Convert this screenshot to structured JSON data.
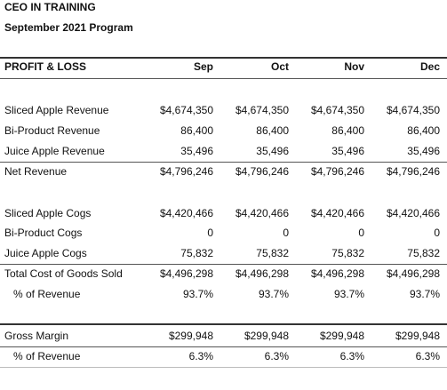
{
  "header": {
    "title": "CEO IN TRAINING",
    "subtitle": "September 2021 Program"
  },
  "table": {
    "columns": [
      "PROFIT & LOSS",
      "Sep",
      "Oct",
      "Nov",
      "Dec"
    ],
    "rows": [
      [
        "Sliced Apple Revenue",
        "$4,674,350",
        "$4,674,350",
        "$4,674,350",
        "$4,674,350"
      ],
      [
        "Bi-Product Revenue",
        "86,400",
        "86,400",
        "86,400",
        "86,400"
      ],
      [
        "Juice Apple Revenue",
        "35,496",
        "35,496",
        "35,496",
        "35,496"
      ],
      [
        "Net Revenue",
        "$4,796,246",
        "$4,796,246",
        "$4,796,246",
        "$4,796,246"
      ],
      [
        "Sliced Apple Cogs",
        "$4,420,466",
        "$4,420,466",
        "$4,420,466",
        "$4,420,466"
      ],
      [
        "Bi-Product Cogs",
        "0",
        "0",
        "0",
        "0"
      ],
      [
        "Juice Apple Cogs",
        "75,832",
        "75,832",
        "75,832",
        "75,832"
      ],
      [
        "Total Cost of Goods Sold",
        "$4,496,298",
        "$4,496,298",
        "$4,496,298",
        "$4,496,298"
      ],
      [
        "% of Revenue",
        "93.7%",
        "93.7%",
        "93.7%",
        "93.7%"
      ],
      [
        "Gross Margin",
        "$299,948",
        "$299,948",
        "$299,948",
        "$299,948"
      ],
      [
        "% of Revenue",
        "6.3%",
        "6.3%",
        "6.3%",
        "6.3%"
      ]
    ]
  }
}
